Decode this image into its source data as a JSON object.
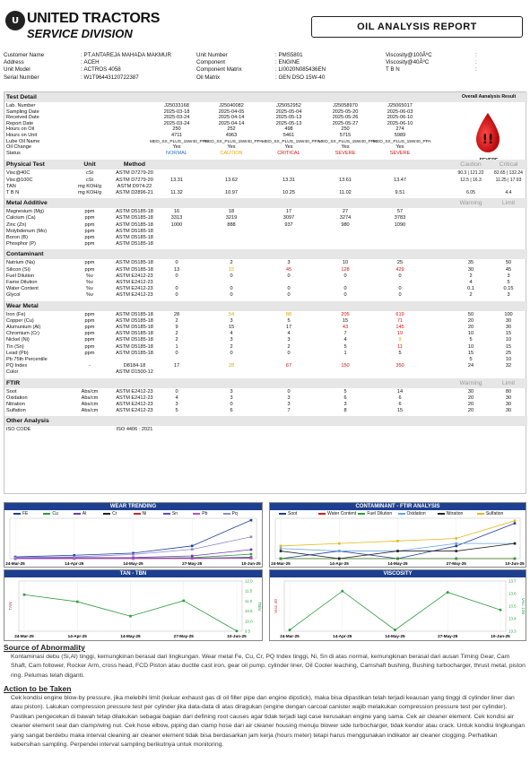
{
  "header": {
    "logo_letter": "U",
    "company": "UNITED TRACTORS",
    "division": "SERVICE DIVISION",
    "report_title": "OIL ANALYSIS REPORT"
  },
  "info": {
    "left": [
      {
        "label": "Customer Name",
        "value": "PT.ANTAREJA MAHADA MAKMUR"
      },
      {
        "label": "Address",
        "value": "ACEH"
      },
      {
        "label": "Unit Model",
        "value": "ACTROS 4058"
      },
      {
        "label": "Serial Number",
        "value": "W1T96443120722387"
      }
    ],
    "mid": [
      {
        "label": "Unit Number",
        "value": "PMS5801"
      },
      {
        "label": "Component",
        "value": "ENGINE"
      },
      {
        "label": "Component Matrix",
        "value": "LI0020N085436EN"
      },
      {
        "label": "Oil Matrix",
        "value": "GEN DSO 15W-40"
      }
    ],
    "right": [
      {
        "label": "Viscosity@100ÂºC",
        "value": ""
      },
      {
        "label": "Viscosity@40ÂºC",
        "value": ""
      },
      {
        "label": "T B N",
        "value": ""
      }
    ]
  },
  "test_detail": {
    "title": "Test Detail",
    "result_title": "Overall Aanalysis Result",
    "result_status": "SEVERE",
    "labels": [
      "Lab. Number",
      "Sampling Date",
      "Received Date",
      "Report Date",
      "Hours on Oil",
      "Hours on Unit",
      "Lube Oil Name",
      "Oil Change",
      "Status"
    ],
    "columns": [
      [
        "J25033168",
        "2025-03-18",
        "2025-03-24",
        "2025-03-24",
        "250",
        "4711",
        "MED_SX_PLUS_15W40_PPA",
        "Yes",
        "NORMAL"
      ],
      [
        "J25040082",
        "2025-04-05",
        "2025-04-14",
        "2025-04-14",
        "252",
        "4963",
        "MED_SX_PLUS_15W40_PPA",
        "Yes",
        "CAUTION"
      ],
      [
        "J25052952",
        "2025-05-04",
        "2025-05-13",
        "2025-05-13",
        "498",
        "5461",
        "MED_SX_PLUS_15W40_PPA",
        "Yes",
        "CRITICAL"
      ],
      [
        "J25058970",
        "2025-05-20",
        "2025-05-26",
        "2025-05-27",
        "250",
        "5715",
        "MED_SX_PLUS_15W40_PPA",
        "Yes",
        "SEVERE"
      ],
      [
        "J25065017",
        "2025-06-03",
        "2025-06-10",
        "2025-06-10",
        "274",
        "5989",
        "MED_SX_PLUS_15W40_PPA",
        "Yes",
        "SEVERE"
      ]
    ]
  },
  "physical": {
    "title": "Physical Test",
    "unit_h": "Unit",
    "method_h": "Method",
    "caution_h": "Caution",
    "critical_h": "Critical",
    "rows": [
      {
        "name": "Visc@40C",
        "unit": "cSt",
        "method": "ASTM D7279-20",
        "vals": [
          "",
          "",
          "",
          "",
          ""
        ],
        "caution": "90.3 | 121.22",
        "critical": "82.65 | 132.24"
      },
      {
        "name": "Visc@100C",
        "unit": "cSt",
        "method": "ASTM D7279-20",
        "vals": [
          "13.31",
          "13.62",
          "13.31",
          "13.61",
          "13.47"
        ],
        "caution": "12.5 | 16.3",
        "critical": "11.25 | 17.93"
      },
      {
        "name": "TAN",
        "unit": "mg KOH/g",
        "method": "ASTM D974-22",
        "vals": [
          "",
          "",
          "",
          "",
          ""
        ],
        "caution": "",
        "critical": ""
      },
      {
        "name": "T B N",
        "unit": "mg KOH/g",
        "method": "ASTM D2896-21",
        "vals": [
          "11.32",
          "10.97",
          "10.25",
          "11.02",
          "9.51"
        ],
        "caution": "6.05",
        "critical": "4.4"
      }
    ]
  },
  "metal_additive": {
    "title": "Metal Additive",
    "warning_h": "Warning",
    "limit_h": "Limit",
    "rows": [
      {
        "name": "Magnesium (Mg)",
        "unit": "ppm",
        "method": "ASTM D5185-18",
        "vals": [
          "16",
          "18",
          "17",
          "27",
          "57"
        ],
        "w": "",
        "l": ""
      },
      {
        "name": "Calcium (Ca)",
        "unit": "ppm",
        "method": "ASTM D5185-18",
        "vals": [
          "3313",
          "3219",
          "3097",
          "3274",
          "3783"
        ],
        "w": "",
        "l": ""
      },
      {
        "name": "Zinc (Zn)",
        "unit": "ppm",
        "method": "ASTM D5185-18",
        "vals": [
          "1000",
          "888",
          "937",
          "980",
          "1090"
        ],
        "w": "",
        "l": ""
      },
      {
        "name": "Molybdenum (Mo)",
        "unit": "ppm",
        "method": "ASTM D5185-18",
        "vals": [
          "",
          "",
          "",
          "",
          ""
        ],
        "w": "",
        "l": ""
      },
      {
        "name": "Boron (B)",
        "unit": "ppm",
        "method": "ASTM D5185-18",
        "vals": [
          "",
          "",
          "",
          "",
          ""
        ],
        "w": "",
        "l": ""
      },
      {
        "name": "Phosphor (P)",
        "unit": "ppm",
        "method": "ASTM D5185-18",
        "vals": [
          "",
          "",
          "",
          "",
          ""
        ],
        "w": "",
        "l": ""
      }
    ]
  },
  "contaminant": {
    "title": "Contaminant",
    "rows": [
      {
        "name": "Natrium (Na)",
        "unit": "ppm",
        "method": "ASTM D5185-18",
        "vals": [
          "0",
          "2",
          "3",
          "10",
          "25"
        ],
        "cls": [
          "",
          "",
          "",
          "",
          ""
        ],
        "w": "35",
        "l": "50"
      },
      {
        "name": "Silicon (Si)",
        "unit": "ppm",
        "method": "ASTM D5185-18",
        "vals": [
          "13",
          "15",
          "45",
          "128",
          "429"
        ],
        "cls": [
          "",
          "c",
          "r",
          "r",
          "r"
        ],
        "w": "30",
        "l": "45"
      },
      {
        "name": "Fuel Dilution",
        "unit": "%v",
        "method": "ASTM E2412-23",
        "vals": [
          "0",
          "0",
          "0",
          "0",
          "0"
        ],
        "cls": [
          "",
          "",
          "",
          "",
          ""
        ],
        "w": "2",
        "l": "3"
      },
      {
        "name": "Fame Dilution",
        "unit": "%v",
        "method": "ASTM E2412-23",
        "vals": [
          "",
          "",
          "",
          "",
          ""
        ],
        "cls": [
          "",
          "",
          "",
          "",
          ""
        ],
        "w": "4",
        "l": "5"
      },
      {
        "name": "Water Content",
        "unit": "%v",
        "method": "ASTM E2412-23",
        "vals": [
          "0",
          "0",
          "0",
          "0",
          "0"
        ],
        "cls": [
          "",
          "",
          "",
          "",
          ""
        ],
        "w": "0.1",
        "l": "0.15"
      },
      {
        "name": "Glycol",
        "unit": "%v",
        "method": "ASTM E2412-23",
        "vals": [
          "0",
          "0",
          "0",
          "0",
          "0"
        ],
        "cls": [
          "",
          "",
          "",
          "",
          ""
        ],
        "w": "2",
        "l": "3"
      }
    ]
  },
  "wear_metal": {
    "title": "Wear Metal",
    "rows": [
      {
        "name": "Iron (Fe)",
        "unit": "ppm",
        "method": "ASTM D5185-18",
        "vals": [
          "28",
          "54",
          "88",
          "205",
          "619"
        ],
        "cls": [
          "",
          "c",
          "c",
          "r",
          "r"
        ],
        "w": "50",
        "l": "100"
      },
      {
        "name": "Copper (Cu)",
        "unit": "ppm",
        "method": "ASTM D5185-18",
        "vals": [
          "2",
          "3",
          "5",
          "15",
          "71"
        ],
        "cls": [
          "",
          "",
          "",
          "",
          "r"
        ],
        "w": "20",
        "l": "30"
      },
      {
        "name": "Alumunium (Al)",
        "unit": "ppm",
        "method": "ASTM D5185-18",
        "vals": [
          "9",
          "15",
          "17",
          "43",
          "145"
        ],
        "cls": [
          "",
          "",
          "",
          "r",
          "r"
        ],
        "w": "20",
        "l": "30"
      },
      {
        "name": "Chromium (Cr)",
        "unit": "ppm",
        "method": "ASTM D5185-18",
        "vals": [
          "2",
          "4",
          "4",
          "7",
          "19"
        ],
        "cls": [
          "",
          "",
          "",
          "",
          "r"
        ],
        "w": "10",
        "l": "15"
      },
      {
        "name": "Nickel (Ni)",
        "unit": "ppm",
        "method": "ASTM D5185-18",
        "vals": [
          "2",
          "3",
          "3",
          "4",
          "9"
        ],
        "cls": [
          "",
          "",
          "",
          "",
          "c"
        ],
        "w": "5",
        "l": "10"
      },
      {
        "name": "Tin (Sn)",
        "unit": "ppm",
        "method": "ASTM D5185-18",
        "vals": [
          "1",
          "2",
          "2",
          "5",
          "11"
        ],
        "cls": [
          "",
          "",
          "",
          "",
          "r"
        ],
        "w": "10",
        "l": "15"
      },
      {
        "name": "Lead (Pb)",
        "unit": "ppm",
        "method": "ASTM D5185-18",
        "vals": [
          "0",
          "0",
          "0",
          "1",
          "5"
        ],
        "cls": [
          "",
          "",
          "",
          "",
          ""
        ],
        "w": "15",
        "l": "25"
      },
      {
        "name": "Pb 75th Percentile",
        "unit": "",
        "method": "",
        "vals": [
          "",
          "",
          "",
          "",
          ""
        ],
        "cls": [
          "",
          "",
          "",
          "",
          ""
        ],
        "w": "5",
        "l": "10"
      },
      {
        "name": "PQ Index",
        "unit": "-",
        "method": "D8184-18",
        "vals": [
          "17",
          "28",
          "67",
          "150",
          "350"
        ],
        "cls": [
          "",
          "c",
          "r",
          "r",
          "r"
        ],
        "w": "24",
        "l": "32"
      },
      {
        "name": "Color",
        "unit": "",
        "method": "ASTM D1500-12",
        "vals": [
          "",
          "",
          "",
          "",
          ""
        ],
        "cls": [
          "",
          "",
          "",
          "",
          ""
        ],
        "w": "",
        "l": ""
      }
    ]
  },
  "ftir": {
    "title": "FTIR",
    "rows": [
      {
        "name": "Soot",
        "unit": "Abs/cm",
        "method": "ASTM E2412-23",
        "vals": [
          "0",
          "3",
          "0",
          "5",
          "14"
        ],
        "w": "30",
        "l": "80"
      },
      {
        "name": "Oxidation",
        "unit": "Abs/cm",
        "method": "ASTM E2412-23",
        "vals": [
          "4",
          "3",
          "3",
          "6",
          "6"
        ],
        "w": "20",
        "l": "30"
      },
      {
        "name": "Nitration",
        "unit": "Abs/cm",
        "method": "ASTM E2412-23",
        "vals": [
          "3",
          "0",
          "3",
          "3",
          "6"
        ],
        "w": "20",
        "l": "30"
      },
      {
        "name": "Sulfation",
        "unit": "Abs/cm",
        "method": "ASTM E2412-23",
        "vals": [
          "5",
          "6",
          "7",
          "8",
          "15"
        ],
        "w": "20",
        "l": "30"
      }
    ]
  },
  "other": {
    "title": "Other Analysis",
    "rows": [
      {
        "name": "ISO CODE",
        "method": "ISO 4406 : 2021"
      }
    ]
  },
  "charts": {
    "dates": [
      "24-Mar-25",
      "14-Apr-25",
      "14-May-25",
      "27-May-25",
      "10-Jun-25"
    ],
    "wear": {
      "title": "WEAR TRENDING",
      "legend": [
        "FE",
        "Cu",
        "Al",
        "Cr",
        "Ni",
        "Sn",
        "Pb",
        "Pq"
      ],
      "colors": [
        "#1f3f9a",
        "#2e9c3d",
        "#6f3bb1",
        "#222222",
        "#c03030",
        "#5b4bd0",
        "#c050c0",
        "#8a8ad0"
      ]
    },
    "contam": {
      "title": "CONTAMINANT - FTIR ANALYSIS",
      "legend": [
        "Soot",
        "Water Content",
        "Fuel Dilution",
        "Oxidation",
        "Nitration",
        "Sulfation"
      ],
      "colors": [
        "#1f3f9a",
        "#d02020",
        "#2e9c3d",
        "#6aa5e0",
        "#222222",
        "#e3b820"
      ]
    },
    "tan": {
      "title": "TAN - TBN",
      "ylabel_l": "TAN",
      "ylabel_r": "TBN",
      "yticks": [
        "12.0",
        "11.5",
        "11.0",
        "10.5",
        "10.0",
        "9.5"
      ]
    },
    "visc": {
      "title": "VISCOSITY",
      "ylabel_l": "Visc 40",
      "ylabel_r": "Visc 100",
      "yticks": [
        "13.7",
        "13.6",
        "13.5",
        "13.4",
        "13.3"
      ]
    }
  },
  "chart_data": [
    {
      "type": "line",
      "title": "WEAR TRENDING",
      "x": [
        "24-Mar-25",
        "14-Apr-25",
        "14-May-25",
        "27-May-25",
        "10-Jun-25"
      ],
      "series": [
        {
          "name": "FE",
          "values": [
            28,
            54,
            88,
            205,
            619
          ]
        },
        {
          "name": "Cu",
          "values": [
            2,
            3,
            5,
            15,
            71
          ]
        },
        {
          "name": "Al",
          "values": [
            9,
            15,
            17,
            43,
            145
          ]
        },
        {
          "name": "Cr",
          "values": [
            2,
            4,
            4,
            7,
            19
          ]
        },
        {
          "name": "Ni",
          "values": [
            2,
            3,
            3,
            4,
            9
          ]
        },
        {
          "name": "Sn",
          "values": [
            1,
            2,
            2,
            5,
            11
          ]
        },
        {
          "name": "Pb",
          "values": [
            0,
            0,
            0,
            1,
            5
          ]
        },
        {
          "name": "Pq",
          "values": [
            17,
            28,
            67,
            150,
            350
          ]
        }
      ],
      "ylim": [
        0,
        650
      ]
    },
    {
      "type": "line",
      "title": "CONTAMINANT - FTIR ANALYSIS",
      "x": [
        "24-Mar-25",
        "14-Apr-25",
        "14-May-25",
        "27-May-25",
        "10-Jun-25"
      ],
      "series": [
        {
          "name": "Soot",
          "values": [
            0,
            3,
            0,
            5,
            14
          ]
        },
        {
          "name": "Water Content",
          "values": [
            0,
            0,
            0,
            0,
            0
          ]
        },
        {
          "name": "Fuel Dilution",
          "values": [
            0,
            0,
            0,
            0,
            0
          ]
        },
        {
          "name": "Oxidation",
          "values": [
            4,
            3,
            3,
            6,
            6
          ]
        },
        {
          "name": "Nitration",
          "values": [
            3,
            0,
            3,
            3,
            6
          ]
        },
        {
          "name": "Sulfation",
          "values": [
            5,
            6,
            7,
            8,
            15
          ]
        }
      ],
      "ylim": [
        0,
        16
      ]
    },
    {
      "type": "line",
      "title": "TAN - TBN",
      "x": [
        "24-Mar-25",
        "14-Apr-25",
        "14-May-25",
        "27-May-25",
        "10-Jun-25"
      ],
      "series": [
        {
          "name": "TBN",
          "values": [
            11.32,
            10.97,
            10.25,
            11.02,
            9.51
          ]
        }
      ],
      "ylim": [
        9.5,
        12.0
      ]
    },
    {
      "type": "line",
      "title": "VISCOSITY",
      "x": [
        "24-Mar-25",
        "14-Apr-25",
        "14-May-25",
        "27-May-25",
        "10-Jun-25"
      ],
      "series": [
        {
          "name": "Visc 100",
          "values": [
            13.31,
            13.62,
            13.31,
            13.61,
            13.47
          ]
        }
      ],
      "ylim": [
        13.3,
        13.7
      ]
    }
  ],
  "abnormality": {
    "title": "Source of Abnormality",
    "text": "Kontaminasi debu (Si,Al) tinggi, kemungkinan berasal dari lingkungan. Wear metal Fe, Cu, Cr, PQ Index tinggi, Ni, Sn di atas normal, kemungkinan berasal dari ausan Timing Gear, Cam Shaft, Cam follower, Rocker Arm, cross head, FCD Piston atau ductile cast iron, gear oil pump, cylinder liner, Oil Cooler leaching, Camshaft bushing, Bushing turbocharger, thrust metal, piston ring. Pelumas telah diganti."
  },
  "action": {
    "title": "Action to be Taken",
    "text": "Cek kondisi engine blow-by pressure, jika melebihi limit (keluar exhaust gas di oil filler pipe dan engine dipstick), maka bisa dipastikan telah terjadi keausan yang tinggi di cylinder liner dan atau piston). Lakukan compression pressure test per cylinder jika data-data di atas diragukan (engine dengan carcoal canister wajib melakukan compression pressure test per cylinder). Pastikan pengecekan di bawah tetap dilakukan sebagai bagian dari defining root causes agar tidak terjadi lagi case kerusakan engine yang sama. Cek air cleaner element. Cek kondisi air cleaner element seal dan clamp/wing nut. Cek hose elbow, piping dan clamp hose dari air cleaner housing menuju blower side turbocharger, tidak kendor atau crack. Untuk kondisi lingkungan yang sangat berdebu maka interval cleaning air cleaner element tidak bisa berdasarkan jam kerja (hours meter) tetapi harus menggunakan indikator air cleaner clogging. Perhatikan kebersihan sampling. Perpendei interval sampling berikutnya untuk monitoring."
  }
}
